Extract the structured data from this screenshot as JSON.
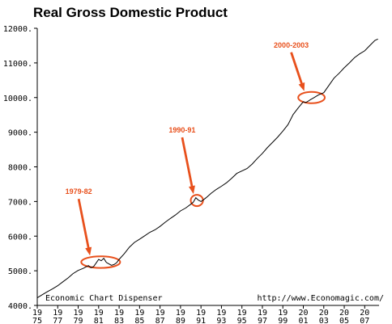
{
  "chart_data": {
    "type": "line",
    "title": "Real Gross Domestic Product",
    "xlabel": "",
    "ylabel": "",
    "xlim": [
      1975,
      2008.4
    ],
    "ylim": [
      4000,
      12000
    ],
    "grid": false,
    "y_ticks": [
      {
        "value": 4000,
        "label": "4000."
      },
      {
        "value": 5000,
        "label": "5000."
      },
      {
        "value": 6000,
        "label": "6000."
      },
      {
        "value": 7000,
        "label": "7000."
      },
      {
        "value": 8000,
        "label": "8000."
      },
      {
        "value": 9000,
        "label": "9000."
      },
      {
        "value": 10000,
        "label": "10000."
      },
      {
        "value": 11000,
        "label": "11000."
      },
      {
        "value": 12000,
        "label": "12000."
      }
    ],
    "x_ticks": [
      {
        "value": 1975,
        "top": "19",
        "bottom": "75"
      },
      {
        "value": 1977,
        "top": "19",
        "bottom": "77"
      },
      {
        "value": 1979,
        "top": "19",
        "bottom": "79"
      },
      {
        "value": 1981,
        "top": "19",
        "bottom": "81"
      },
      {
        "value": 1983,
        "top": "19",
        "bottom": "83"
      },
      {
        "value": 1985,
        "top": "19",
        "bottom": "85"
      },
      {
        "value": 1987,
        "top": "19",
        "bottom": "87"
      },
      {
        "value": 1989,
        "top": "19",
        "bottom": "89"
      },
      {
        "value": 1991,
        "top": "19",
        "bottom": "91"
      },
      {
        "value": 1993,
        "top": "19",
        "bottom": "93"
      },
      {
        "value": 1995,
        "top": "19",
        "bottom": "95"
      },
      {
        "value": 1997,
        "top": "19",
        "bottom": "97"
      },
      {
        "value": 1999,
        "top": "19",
        "bottom": "99"
      },
      {
        "value": 2001,
        "top": "20",
        "bottom": "01"
      },
      {
        "value": 2003,
        "top": "20",
        "bottom": "03"
      },
      {
        "value": 2005,
        "top": "20",
        "bottom": "05"
      },
      {
        "value": 2007,
        "top": "20",
        "bottom": "07"
      }
    ],
    "series": [
      {
        "color": "#000000",
        "x": [
          1975.0,
          1975.5,
          1976.0,
          1976.5,
          1977.0,
          1977.5,
          1978.0,
          1978.5,
          1979.0,
          1979.5,
          1980.0,
          1980.25,
          1980.5,
          1980.75,
          1981.0,
          1981.25,
          1981.5,
          1981.75,
          1982.0,
          1982.25,
          1982.5,
          1982.75,
          1983.0,
          1983.5,
          1984.0,
          1984.5,
          1985.0,
          1985.5,
          1986.0,
          1986.5,
          1987.0,
          1987.5,
          1988.0,
          1988.5,
          1989.0,
          1989.5,
          1990.0,
          1990.25,
          1990.5,
          1990.75,
          1991.0,
          1991.25,
          1991.5,
          1992.0,
          1992.5,
          1993.0,
          1993.5,
          1994.0,
          1994.5,
          1995.0,
          1995.5,
          1996.0,
          1996.5,
          1997.0,
          1997.5,
          1998.0,
          1998.5,
          1999.0,
          1999.5,
          2000.0,
          2000.5,
          2001.0,
          2001.25,
          2001.5,
          2001.75,
          2002.0,
          2002.5,
          2003.0,
          2003.5,
          2004.0,
          2004.5,
          2005.0,
          2005.5,
          2006.0,
          2006.5,
          2007.0,
          2007.5,
          2008.0,
          2008.3
        ],
        "values": [
          4220,
          4310,
          4400,
          4480,
          4570,
          4680,
          4790,
          4920,
          5010,
          5070,
          5150,
          5090,
          5120,
          5220,
          5330,
          5290,
          5360,
          5240,
          5200,
          5160,
          5180,
          5230,
          5330,
          5490,
          5680,
          5820,
          5910,
          6010,
          6110,
          6180,
          6280,
          6400,
          6510,
          6610,
          6730,
          6810,
          6920,
          6980,
          7110,
          7040,
          7000,
          7050,
          7110,
          7240,
          7350,
          7440,
          7540,
          7670,
          7810,
          7880,
          7950,
          8080,
          8240,
          8390,
          8560,
          8710,
          8860,
          9030,
          9220,
          9510,
          9700,
          9880,
          9860,
          9900,
          9950,
          9990,
          10080,
          10140,
          10350,
          10560,
          10700,
          10860,
          11000,
          11150,
          11260,
          11350,
          11500,
          11650,
          11690
        ]
      }
    ],
    "annotations": [
      {
        "label": "1979-82",
        "x_start": 1979.3,
        "x_end": 1983.1,
        "value": 5250
      },
      {
        "label": "1990-91",
        "x_start": 1990.0,
        "x_end": 1991.2,
        "value": 7030
      },
      {
        "label": "2000-2003",
        "x_start": 2000.5,
        "x_end": 2003.1,
        "value": 10000
      }
    ],
    "annotation_color": "#e8501c",
    "footer_left": "Economic Chart Dispenser",
    "footer_right": "http://www.Economagic.com/"
  }
}
